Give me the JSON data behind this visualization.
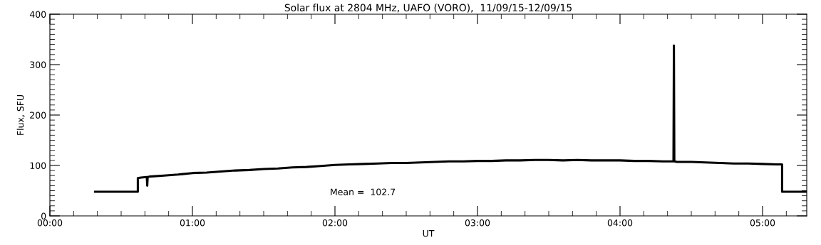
{
  "chart_data": {
    "type": "line",
    "title": "Solar flux at 2804 MHz, UAFO (VORO),  11/09/15-12/09/15",
    "xlabel": "UT",
    "ylabel": "Flux, SFU",
    "annotations": [
      "Mean =  102.7"
    ],
    "series": [
      {
        "color": "#000000",
        "x": [
          0.317,
          0.617,
          0.617,
          0.64,
          0.68,
          0.683,
          0.686,
          0.7,
          0.8,
          0.9,
          1.0,
          1.1,
          1.2,
          1.3,
          1.4,
          1.5,
          1.6,
          1.7,
          1.8,
          1.9,
          2.0,
          2.1,
          2.2,
          2.3,
          2.4,
          2.5,
          2.6,
          2.7,
          2.8,
          2.9,
          3.0,
          3.1,
          3.2,
          3.3,
          3.4,
          3.5,
          3.6,
          3.7,
          3.8,
          3.9,
          4.0,
          4.1,
          4.2,
          4.3,
          4.375,
          4.378,
          4.381,
          4.4,
          4.5,
          4.6,
          4.7,
          4.8,
          4.9,
          5.0,
          5.1,
          5.137,
          5.137,
          5.31
        ],
        "values": [
          48,
          48,
          75,
          76,
          77,
          60,
          77,
          78,
          80,
          82,
          85,
          86,
          88,
          90,
          91,
          93,
          94,
          96,
          97,
          99,
          101,
          102,
          103,
          104,
          105,
          105,
          106,
          107,
          108,
          108,
          109,
          109,
          110,
          110,
          111,
          111,
          110,
          111,
          110,
          110,
          110,
          109,
          109,
          108,
          108,
          338,
          108,
          107,
          107,
          106,
          105,
          104,
          104,
          103,
          102,
          102,
          48,
          48
        ]
      }
    ],
    "xlim": [
      0,
      5.31
    ],
    "ylim": [
      0,
      400
    ],
    "xticks": [
      {
        "value": 0,
        "label": "00:00"
      },
      {
        "value": 1,
        "label": "01:00"
      },
      {
        "value": 2,
        "label": "02:00"
      },
      {
        "value": 3,
        "label": "03:00"
      },
      {
        "value": 4,
        "label": "04:00"
      },
      {
        "value": 5,
        "label": "05:00"
      }
    ],
    "yticks": [
      0,
      100,
      200,
      300,
      400
    ],
    "grid": false,
    "legend": false,
    "marker": "none",
    "line_style": "solid"
  }
}
